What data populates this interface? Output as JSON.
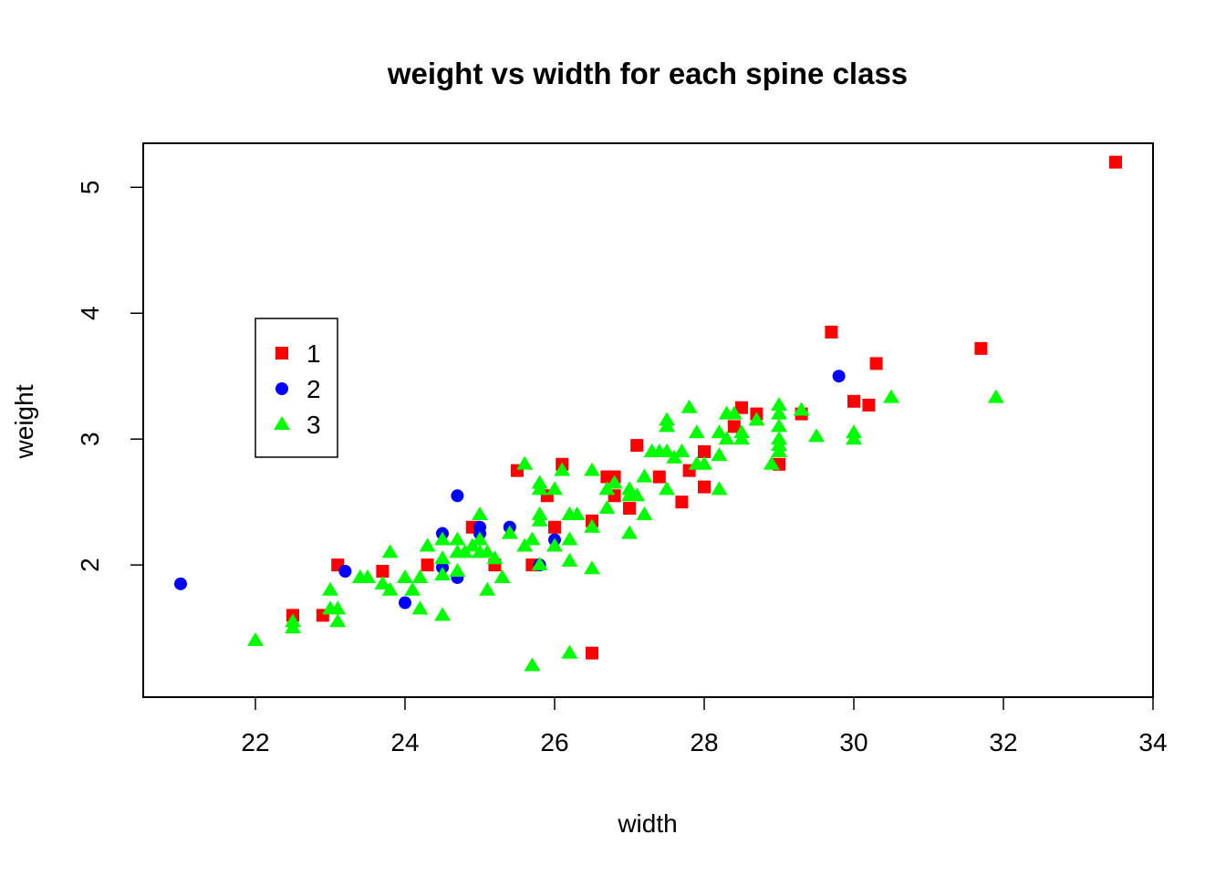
{
  "chart_data": {
    "type": "scatter",
    "title": "weight vs width for each spine class",
    "xlabel": "width",
    "ylabel": "weight",
    "xlim": [
      20.5,
      34
    ],
    "ylim": [
      0.95,
      5.35
    ],
    "xticks": [
      22,
      24,
      26,
      28,
      30,
      32,
      34
    ],
    "yticks": [
      2,
      3,
      4,
      5
    ],
    "grid": false,
    "legend": {
      "position": "left",
      "entries": [
        "1",
        "2",
        "3"
      ]
    },
    "series": [
      {
        "name": "1",
        "color": "#ff0000",
        "marker": "square",
        "points": [
          [
            22.5,
            1.6
          ],
          [
            22.9,
            1.6
          ],
          [
            23.1,
            2.0
          ],
          [
            23.7,
            1.95
          ],
          [
            24.3,
            2.0
          ],
          [
            24.9,
            2.3
          ],
          [
            25.2,
            2.0
          ],
          [
            25.5,
            2.75
          ],
          [
            25.7,
            2.0
          ],
          [
            25.9,
            2.55
          ],
          [
            26.0,
            2.3
          ],
          [
            26.1,
            2.8
          ],
          [
            26.5,
            2.35
          ],
          [
            26.5,
            1.3
          ],
          [
            26.7,
            2.7
          ],
          [
            26.8,
            2.7
          ],
          [
            26.8,
            2.55
          ],
          [
            27.0,
            2.45
          ],
          [
            27.1,
            2.95
          ],
          [
            27.4,
            2.7
          ],
          [
            27.7,
            2.5
          ],
          [
            27.8,
            2.75
          ],
          [
            28.0,
            2.9
          ],
          [
            28.0,
            2.62
          ],
          [
            28.4,
            3.1
          ],
          [
            28.5,
            3.25
          ],
          [
            28.7,
            3.2
          ],
          [
            29.0,
            2.8
          ],
          [
            29.3,
            3.2
          ],
          [
            29.7,
            3.85
          ],
          [
            30.0,
            3.3
          ],
          [
            30.2,
            3.27
          ],
          [
            30.3,
            3.6
          ],
          [
            31.7,
            3.72
          ],
          [
            33.5,
            5.2
          ]
        ]
      },
      {
        "name": "2",
        "color": "#0000ff",
        "marker": "circle",
        "points": [
          [
            21.0,
            1.85
          ],
          [
            23.2,
            1.95
          ],
          [
            24.0,
            1.7
          ],
          [
            24.5,
            2.25
          ],
          [
            24.5,
            1.98
          ],
          [
            24.7,
            2.55
          ],
          [
            24.7,
            1.9
          ],
          [
            25.0,
            2.3
          ],
          [
            25.0,
            2.25
          ],
          [
            25.4,
            2.3
          ],
          [
            25.8,
            2.0
          ],
          [
            26.0,
            2.2
          ],
          [
            29.8,
            3.5
          ]
        ]
      },
      {
        "name": "3",
        "color": "#00ff00",
        "marker": "triangle",
        "points": [
          [
            22.0,
            1.4
          ],
          [
            22.5,
            1.55
          ],
          [
            22.5,
            1.5
          ],
          [
            23.0,
            1.65
          ],
          [
            23.0,
            1.8
          ],
          [
            23.1,
            1.65
          ],
          [
            23.1,
            1.55
          ],
          [
            23.4,
            1.9
          ],
          [
            23.5,
            1.9
          ],
          [
            23.7,
            1.85
          ],
          [
            23.8,
            1.8
          ],
          [
            23.8,
            2.1
          ],
          [
            24.0,
            1.9
          ],
          [
            24.1,
            1.8
          ],
          [
            24.2,
            1.65
          ],
          [
            24.2,
            1.9
          ],
          [
            24.3,
            2.15
          ],
          [
            24.5,
            1.6
          ],
          [
            24.5,
            1.92
          ],
          [
            24.5,
            2.05
          ],
          [
            24.5,
            2.2
          ],
          [
            24.7,
            2.2
          ],
          [
            24.7,
            2.1
          ],
          [
            24.7,
            1.95
          ],
          [
            24.8,
            2.1
          ],
          [
            24.9,
            2.15
          ],
          [
            25.0,
            2.2
          ],
          [
            25.0,
            2.4
          ],
          [
            25.0,
            2.1
          ],
          [
            25.1,
            2.1
          ],
          [
            25.1,
            1.8
          ],
          [
            25.2,
            2.05
          ],
          [
            25.3,
            1.9
          ],
          [
            25.4,
            2.25
          ],
          [
            25.6,
            2.15
          ],
          [
            25.6,
            2.8
          ],
          [
            25.7,
            2.2
          ],
          [
            25.7,
            1.2
          ],
          [
            25.8,
            2.0
          ],
          [
            25.8,
            2.35
          ],
          [
            25.8,
            2.4
          ],
          [
            25.8,
            2.6
          ],
          [
            25.8,
            2.65
          ],
          [
            26.0,
            2.15
          ],
          [
            26.0,
            2.6
          ],
          [
            26.1,
            2.75
          ],
          [
            26.2,
            2.2
          ],
          [
            26.2,
            2.4
          ],
          [
            26.2,
            2.03
          ],
          [
            26.2,
            1.3
          ],
          [
            26.3,
            2.4
          ],
          [
            26.5,
            2.3
          ],
          [
            26.5,
            1.97
          ],
          [
            26.5,
            2.75
          ],
          [
            26.7,
            2.6
          ],
          [
            26.7,
            2.45
          ],
          [
            26.8,
            2.65
          ],
          [
            27.0,
            2.25
          ],
          [
            27.0,
            2.55
          ],
          [
            27.0,
            2.6
          ],
          [
            27.1,
            2.55
          ],
          [
            27.2,
            2.4
          ],
          [
            27.2,
            2.7
          ],
          [
            27.3,
            2.9
          ],
          [
            27.4,
            2.9
          ],
          [
            27.5,
            3.15
          ],
          [
            27.5,
            3.1
          ],
          [
            27.5,
            2.9
          ],
          [
            27.5,
            2.6
          ],
          [
            27.6,
            2.85
          ],
          [
            27.7,
            2.9
          ],
          [
            27.8,
            3.25
          ],
          [
            27.9,
            3.05
          ],
          [
            27.9,
            2.8
          ],
          [
            28.0,
            2.8
          ],
          [
            28.2,
            2.6
          ],
          [
            28.2,
            2.87
          ],
          [
            28.2,
            3.05
          ],
          [
            28.3,
            3.2
          ],
          [
            28.3,
            3.0
          ],
          [
            28.4,
            3.2
          ],
          [
            28.5,
            3.0
          ],
          [
            28.5,
            3.05
          ],
          [
            28.7,
            3.15
          ],
          [
            28.9,
            2.8
          ],
          [
            29.0,
            3.27
          ],
          [
            29.0,
            3.2
          ],
          [
            29.0,
            3.1
          ],
          [
            29.0,
            2.95
          ],
          [
            29.0,
            2.9
          ],
          [
            29.0,
            3.0
          ],
          [
            29.3,
            3.23
          ],
          [
            29.5,
            3.02
          ],
          [
            30.0,
            3.0
          ],
          [
            30.0,
            3.05
          ],
          [
            30.5,
            3.33
          ],
          [
            31.9,
            3.33
          ]
        ]
      }
    ]
  }
}
